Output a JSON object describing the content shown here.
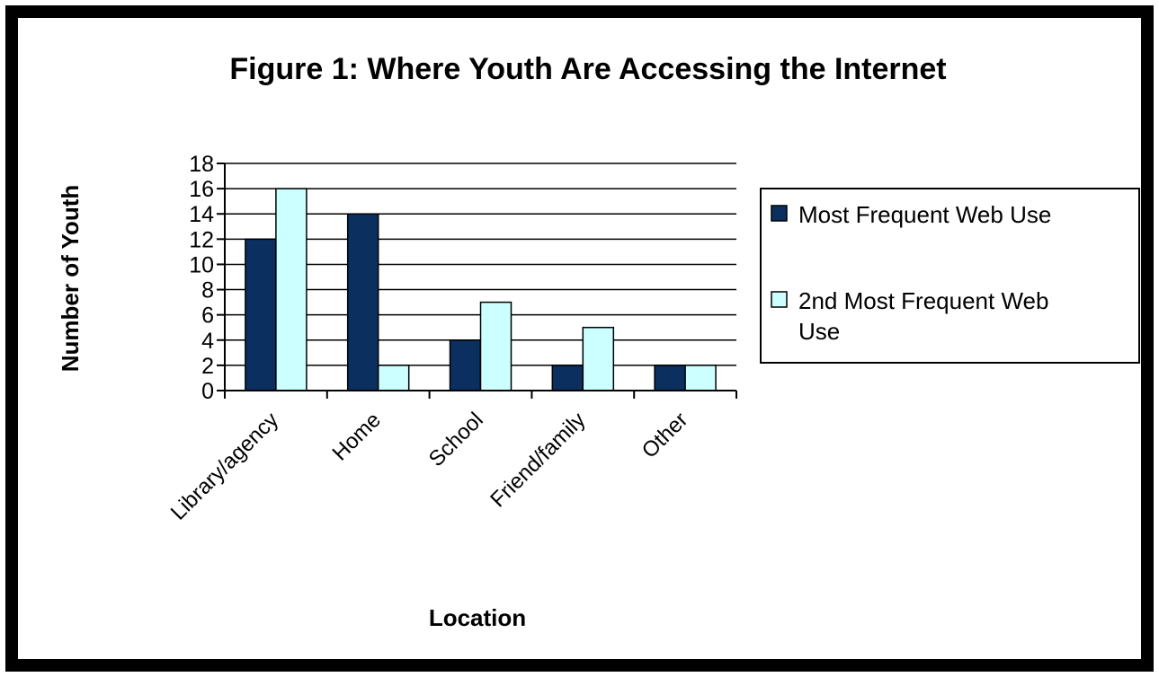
{
  "chart_data": {
    "type": "bar",
    "title": "Figure 1: Where Youth Are Accessing the Internet",
    "xlabel": "Location",
    "ylabel": "Number of Youth",
    "categories": [
      "Library/agency",
      "Home",
      "School",
      "Friend/family",
      "Other"
    ],
    "series": [
      {
        "name": "Most Frequent Web Use",
        "values": [
          12,
          14,
          4,
          2,
          2
        ],
        "color": "#0b2f5e"
      },
      {
        "name": "2nd Most Frequent Web Use",
        "values": [
          16,
          2,
          7,
          5,
          2
        ],
        "color": "#ccffff"
      }
    ],
    "ylim": [
      0,
      18
    ],
    "yticks": [
      0,
      2,
      4,
      6,
      8,
      10,
      12,
      14,
      16,
      18
    ],
    "grid": true,
    "legend": "right",
    "legend_lines": [
      [
        "Most Frequent Web Use"
      ],
      [
        "2nd Most Frequent Web",
        "Use"
      ]
    ]
  }
}
